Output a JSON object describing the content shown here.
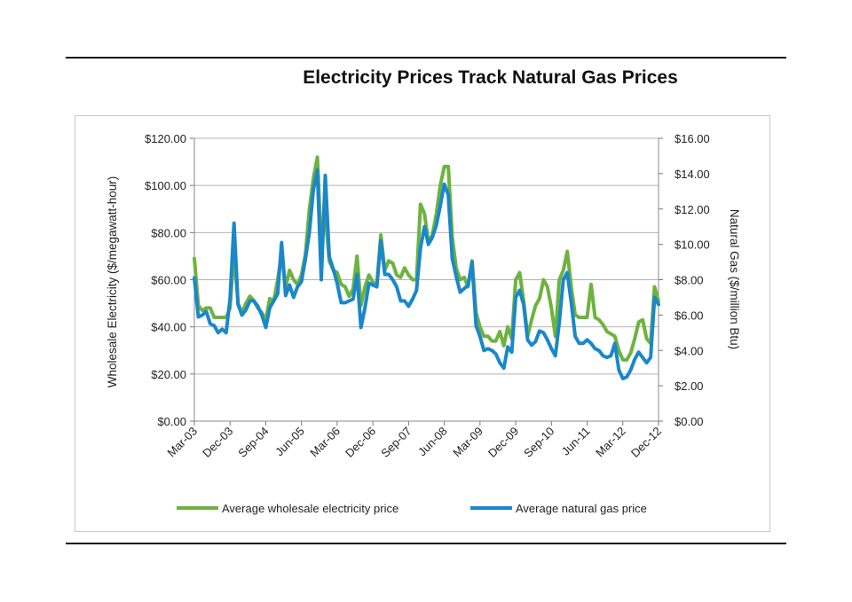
{
  "chart_data": {
    "type": "line",
    "title": "Electricity Prices Track Natural Gas Prices",
    "ylabel_left": "Wholesale Electricity  ($/megawatt-hour)",
    "ylabel_right": "Natural Gas  ($/million Btu)",
    "ylim_left": [
      0,
      120
    ],
    "ylim_right": [
      0,
      16
    ],
    "yticks_left": [
      "$0.00",
      "$20.00",
      "$40.00",
      "$60.00",
      "$80.00",
      "$100.00",
      "$120.00"
    ],
    "yticks_right": [
      "$0.00",
      "$2.00",
      "$4.00",
      "$6.00",
      "$8.00",
      "$10.00",
      "$12.00",
      "$14.00",
      "$16.00"
    ],
    "x_tick_labels": [
      "Mar-03",
      "Dec-03",
      "Sep-04",
      "Jun-05",
      "Mar-06",
      "Dec-06",
      "Sep-07",
      "Jun-08",
      "Mar-09",
      "Dec-09",
      "Sep-10",
      "Jun-11",
      "Mar-12",
      "Dec-12"
    ],
    "x_tick_months": [
      0,
      9,
      18,
      27,
      36,
      45,
      54,
      63,
      72,
      81,
      90,
      99,
      108,
      117
    ],
    "x_range_months": [
      0,
      117
    ],
    "grid": true,
    "legend_position": "bottom",
    "colors": {
      "electricity": "#6db33f",
      "gas": "#1b87c9"
    },
    "series": [
      {
        "name": "Average wholesale electricity price",
        "axis": "left",
        "values": [
          69,
          49,
          47,
          48,
          48,
          44,
          44,
          44,
          44,
          48,
          72,
          50,
          46,
          50,
          53,
          51,
          48,
          46,
          43,
          52,
          51,
          60,
          71,
          57,
          64,
          60,
          58,
          62,
          71,
          90,
          103,
          112,
          74,
          88,
          68,
          64,
          63,
          58,
          57,
          53,
          56,
          70,
          49,
          57,
          62,
          59,
          58,
          79,
          64,
          68,
          67,
          62,
          61,
          65,
          62,
          60,
          60,
          92,
          88,
          76,
          79,
          88,
          100,
          108,
          108,
          78,
          65,
          60,
          61,
          57,
          68,
          46,
          40,
          36,
          36,
          34,
          34,
          38,
          32,
          40,
          35,
          60,
          63,
          51,
          36,
          43,
          49,
          52,
          60,
          57,
          48,
          36,
          60,
          64,
          72,
          57,
          45,
          44,
          44,
          44,
          58,
          44,
          43,
          41,
          38,
          37,
          36,
          30,
          26,
          26,
          29,
          35,
          42,
          43,
          35,
          33,
          57,
          51
        ]
      },
      {
        "name": "Average natural gas price",
        "axis": "right",
        "values": [
          8.1,
          5.9,
          6.0,
          6.2,
          5.5,
          5.4,
          5.0,
          5.2,
          5.0,
          6.9,
          11.2,
          6.6,
          6.0,
          6.3,
          6.8,
          6.8,
          6.5,
          6.0,
          5.3,
          6.4,
          6.8,
          7.2,
          10.1,
          7.1,
          7.7,
          7.0,
          7.6,
          7.9,
          9.2,
          10.7,
          13.1,
          14.2,
          8.0,
          13.9,
          9.3,
          8.6,
          7.8,
          6.7,
          6.7,
          6.8,
          6.9,
          8.3,
          5.3,
          6.4,
          7.8,
          7.7,
          7.6,
          10.2,
          8.3,
          8.3,
          8.0,
          7.6,
          6.8,
          6.8,
          6.5,
          6.9,
          7.4,
          9.8,
          11.0,
          10.0,
          10.4,
          11.1,
          12.2,
          13.4,
          12.8,
          9.2,
          8.2,
          7.3,
          7.5,
          7.7,
          9.0,
          5.4,
          4.8,
          4.0,
          4.1,
          4.0,
          3.8,
          3.3,
          3.0,
          4.2,
          3.9,
          7.0,
          7.4,
          6.6,
          4.6,
          4.3,
          4.5,
          5.1,
          5.0,
          4.6,
          4.1,
          3.7,
          5.6,
          8.0,
          8.4,
          6.7,
          4.8,
          4.4,
          4.4,
          4.6,
          4.4,
          4.1,
          4.0,
          3.7,
          3.6,
          3.7,
          4.4,
          2.9,
          2.4,
          2.5,
          2.9,
          3.5,
          3.9,
          3.6,
          3.3,
          3.6,
          7.0,
          6.6
        ]
      }
    ]
  }
}
